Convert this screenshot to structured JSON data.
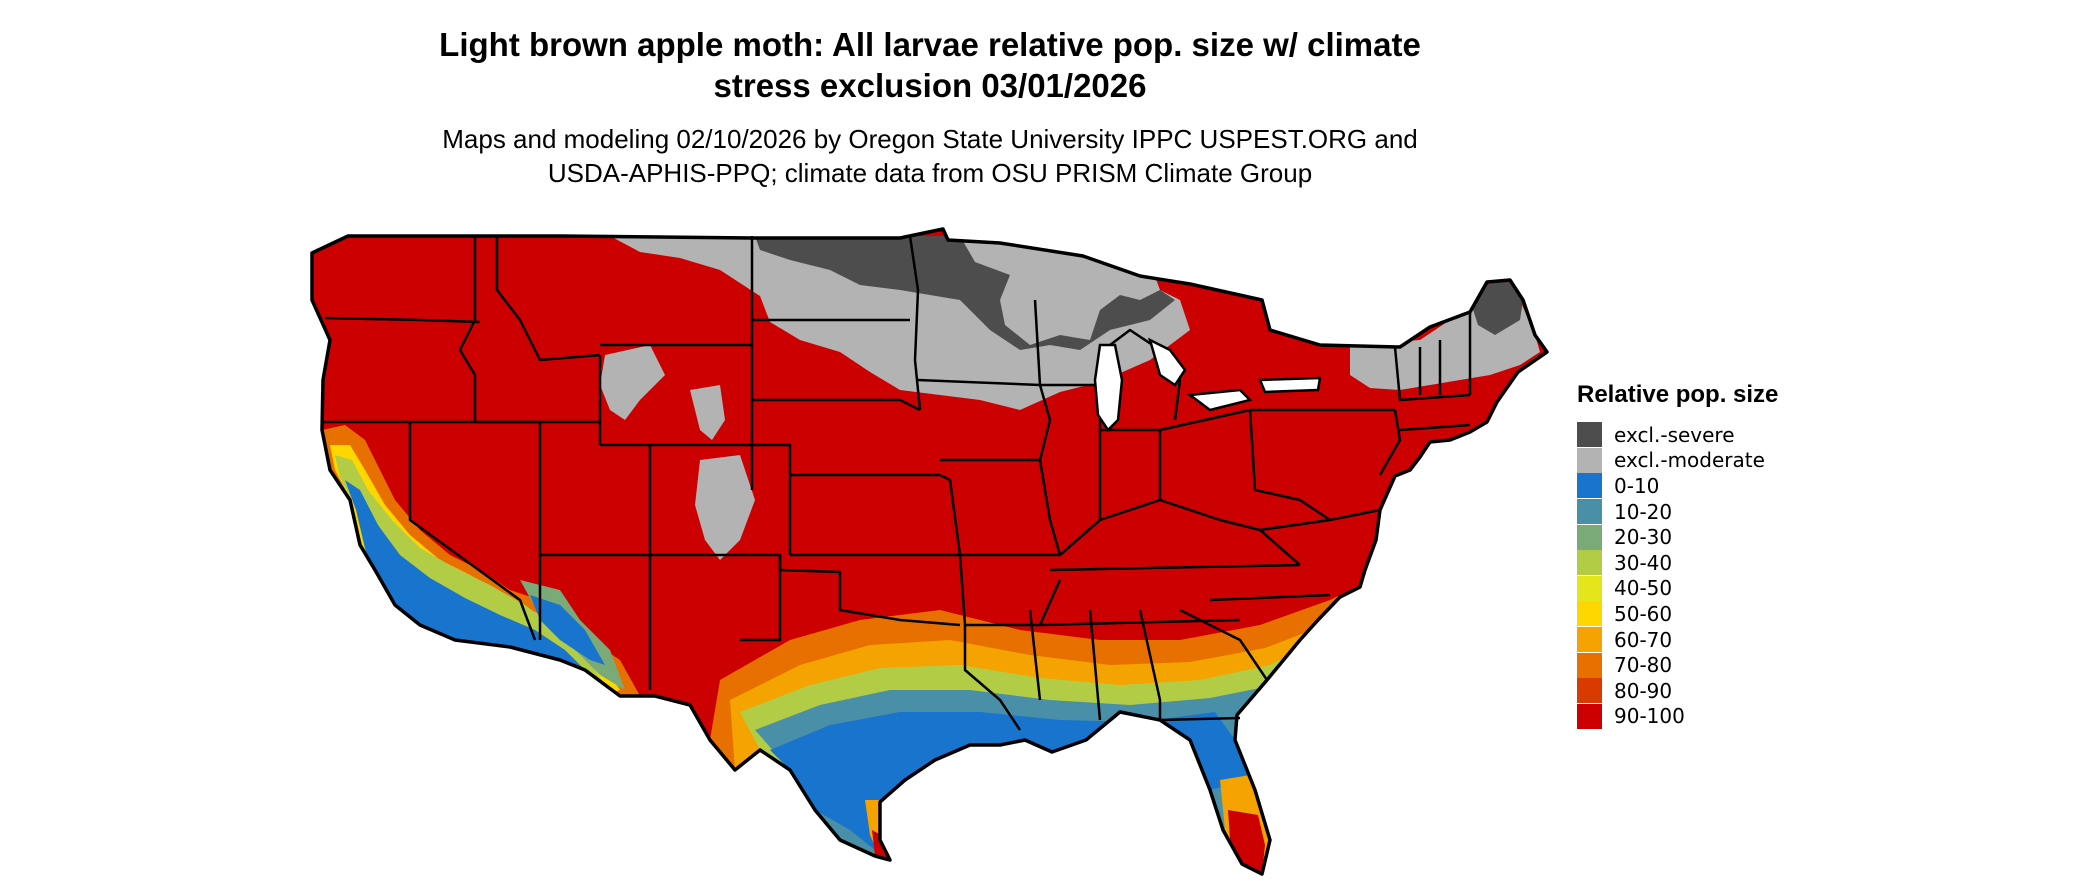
{
  "title_line1": "Light brown apple moth: All larvae relative pop. size w/ climate",
  "title_line2": "stress exclusion 03/01/2026",
  "subtitle_line1": "Maps and modeling 02/10/2026 by Oregon State University IPPC USPEST.ORG and",
  "subtitle_line2": "USDA-APHIS-PPQ; climate data from OSU PRISM Climate Group",
  "legend": {
    "title": "Relative pop. size",
    "items": [
      {
        "label": "excl.-severe",
        "color": "#4d4d4d",
        "icon": "swatch-excl-severe"
      },
      {
        "label": "excl.-moderate",
        "color": "#b3b3b3",
        "icon": "swatch-excl-moderate"
      },
      {
        "label": "0-10",
        "color": "#1874cd",
        "icon": "swatch-0-10"
      },
      {
        "label": "10-20",
        "color": "#4a8fa8",
        "icon": "swatch-10-20"
      },
      {
        "label": "20-30",
        "color": "#7aaa78",
        "icon": "swatch-20-30"
      },
      {
        "label": "30-40",
        "color": "#b2cd45",
        "icon": "swatch-30-40"
      },
      {
        "label": "40-50",
        "color": "#e4e61b",
        "icon": "swatch-40-50"
      },
      {
        "label": "50-60",
        "color": "#ffd700",
        "icon": "swatch-50-60"
      },
      {
        "label": "60-70",
        "color": "#f4a300",
        "icon": "swatch-60-70"
      },
      {
        "label": "70-80",
        "color": "#e87000",
        "icon": "swatch-70-80"
      },
      {
        "label": "80-90",
        "color": "#d83a00",
        "icon": "swatch-80-90"
      },
      {
        "label": "90-100",
        "color": "#cc0000",
        "icon": "swatch-90-100"
      }
    ]
  },
  "colors": {
    "land_default": "#cc0000",
    "state_border": "#000000"
  }
}
